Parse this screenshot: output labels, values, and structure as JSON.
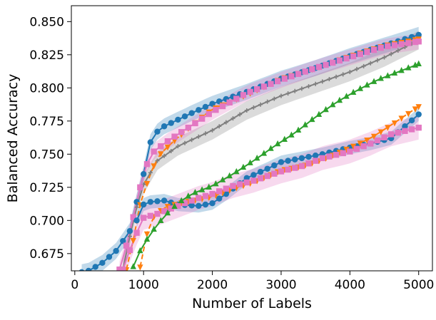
{
  "chart_data": {
    "type": "line",
    "title": "",
    "xlabel": "Number of Labels",
    "ylabel": "Balanced Accuracy",
    "xlim": [
      -50,
      5200
    ],
    "ylim": [
      0.662,
      0.862
    ],
    "xticks": [
      0,
      1000,
      2000,
      3000,
      4000,
      5000
    ],
    "xtick_labels": [
      "0",
      "1000",
      "2000",
      "3000",
      "4000",
      "5000"
    ],
    "yticks": [
      0.675,
      0.7,
      0.725,
      0.75,
      0.775,
      0.8,
      0.825,
      0.85
    ],
    "ytick_labels": [
      "0.675",
      "0.700",
      "0.725",
      "0.750",
      "0.775",
      "0.800",
      "0.825",
      "0.850"
    ],
    "grid": false,
    "legend": null,
    "series": [
      {
        "color": "#1f77b4",
        "marker": "circle",
        "linestyle": "solid",
        "band": 0.006,
        "points": [
          [
            100,
            0.661
          ],
          [
            200,
            0.662
          ],
          [
            400,
            0.668
          ],
          [
            600,
            0.677
          ],
          [
            800,
            0.692
          ],
          [
            900,
            0.714
          ],
          [
            1000,
            0.735
          ],
          [
            1100,
            0.759
          ],
          [
            1200,
            0.767
          ],
          [
            1300,
            0.771
          ],
          [
            1500,
            0.776
          ],
          [
            1700,
            0.781
          ],
          [
            2000,
            0.788
          ],
          [
            2500,
            0.797
          ],
          [
            3000,
            0.807
          ],
          [
            3500,
            0.815
          ],
          [
            4000,
            0.824
          ],
          [
            4500,
            0.832
          ],
          [
            5000,
            0.84
          ]
        ]
      },
      {
        "color": "#7f7f7f",
        "marker": "plus",
        "linestyle": "solid",
        "band": 0.007,
        "points": [
          [
            700,
            0.663
          ],
          [
            800,
            0.688
          ],
          [
            900,
            0.71
          ],
          [
            1000,
            0.727
          ],
          [
            1200,
            0.745
          ],
          [
            1500,
            0.756
          ],
          [
            2000,
            0.768
          ],
          [
            2500,
            0.783
          ],
          [
            3000,
            0.794
          ],
          [
            3500,
            0.803
          ],
          [
            4000,
            0.812
          ],
          [
            4500,
            0.823
          ],
          [
            5000,
            0.836
          ]
        ]
      },
      {
        "color": "#ff7f0e",
        "marker": "triangle-down",
        "linestyle": "dashed",
        "band": 0.0,
        "points": [
          [
            750,
            0.663
          ],
          [
            850,
            0.685
          ],
          [
            950,
            0.712
          ],
          [
            1050,
            0.728
          ],
          [
            1200,
            0.748
          ],
          [
            1400,
            0.758
          ],
          [
            1700,
            0.772
          ],
          [
            2000,
            0.784
          ],
          [
            2500,
            0.795
          ],
          [
            3000,
            0.807
          ],
          [
            3500,
            0.815
          ],
          [
            4000,
            0.824
          ],
          [
            4500,
            0.832
          ],
          [
            5000,
            0.837
          ]
        ]
      },
      {
        "color": "#e377c2",
        "marker": "square",
        "linestyle": "solid",
        "band": 0.006,
        "points": [
          [
            650,
            0.663
          ],
          [
            800,
            0.69
          ],
          [
            900,
            0.715
          ],
          [
            1000,
            0.735
          ],
          [
            1100,
            0.75
          ],
          [
            1300,
            0.758
          ],
          [
            1500,
            0.765
          ],
          [
            1800,
            0.775
          ],
          [
            2000,
            0.782
          ],
          [
            2500,
            0.796
          ],
          [
            3000,
            0.806
          ],
          [
            3500,
            0.815
          ],
          [
            4000,
            0.823
          ],
          [
            4500,
            0.831
          ],
          [
            5000,
            0.835
          ]
        ]
      },
      {
        "color": "#1f77b4",
        "marker": "circle",
        "linestyle": "solid",
        "band": 0.005,
        "points": [
          [
            900,
            0.7
          ],
          [
            1000,
            0.712
          ],
          [
            1100,
            0.714
          ],
          [
            1300,
            0.715
          ],
          [
            1500,
            0.712
          ],
          [
            1800,
            0.711
          ],
          [
            2000,
            0.713
          ],
          [
            2200,
            0.72
          ],
          [
            2500,
            0.732
          ],
          [
            2800,
            0.739
          ],
          [
            3000,
            0.744
          ],
          [
            3300,
            0.747
          ],
          [
            3600,
            0.75
          ],
          [
            4000,
            0.755
          ],
          [
            4300,
            0.758
          ],
          [
            4600,
            0.762
          ],
          [
            5000,
            0.78
          ]
        ]
      },
      {
        "color": "#ff7f0e",
        "marker": "triangle-down",
        "linestyle": "dashed",
        "band": 0.0,
        "points": [
          [
            950,
            0.665
          ],
          [
            1050,
            0.69
          ],
          [
            1150,
            0.703
          ],
          [
            1300,
            0.71
          ],
          [
            1500,
            0.713
          ],
          [
            1800,
            0.716
          ],
          [
            2000,
            0.718
          ],
          [
            2300,
            0.724
          ],
          [
            2600,
            0.729
          ],
          [
            3000,
            0.738
          ],
          [
            3300,
            0.741
          ],
          [
            3600,
            0.746
          ],
          [
            4000,
            0.755
          ],
          [
            4300,
            0.762
          ],
          [
            4600,
            0.772
          ],
          [
            5000,
            0.786
          ]
        ]
      },
      {
        "color": "#e377c2",
        "marker": "square",
        "linestyle": "solid",
        "band": 0.009,
        "points": [
          [
            700,
            0.663
          ],
          [
            850,
            0.685
          ],
          [
            1000,
            0.702
          ],
          [
            1200,
            0.705
          ],
          [
            1500,
            0.711
          ],
          [
            1800,
            0.717
          ],
          [
            2000,
            0.72
          ],
          [
            2300,
            0.726
          ],
          [
            2600,
            0.73
          ],
          [
            3000,
            0.737
          ],
          [
            3300,
            0.741
          ],
          [
            3600,
            0.747
          ],
          [
            4000,
            0.752
          ],
          [
            4300,
            0.758
          ],
          [
            4600,
            0.765
          ],
          [
            5000,
            0.77
          ]
        ]
      },
      {
        "color": "#2ca02c",
        "marker": "triangle-up",
        "linestyle": "solid",
        "band": 0.0,
        "points": [
          [
            850,
            0.665
          ],
          [
            950,
            0.677
          ],
          [
            1100,
            0.69
          ],
          [
            1300,
            0.703
          ],
          [
            1500,
            0.713
          ],
          [
            1700,
            0.72
          ],
          [
            2000,
            0.726
          ],
          [
            2300,
            0.735
          ],
          [
            2600,
            0.745
          ],
          [
            2900,
            0.756
          ],
          [
            3200,
            0.766
          ],
          [
            3500,
            0.778
          ],
          [
            3800,
            0.789
          ],
          [
            4100,
            0.798
          ],
          [
            4400,
            0.806
          ],
          [
            4700,
            0.812
          ],
          [
            5000,
            0.818
          ]
        ]
      }
    ]
  }
}
